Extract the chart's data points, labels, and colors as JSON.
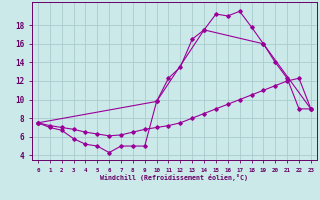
{
  "bg_color": "#cce9e9",
  "line_color": "#990099",
  "grid_color": "#aacccc",
  "xlabel": "Windchill (Refroidissement éolien,°C)",
  "xlabel_color": "#660066",
  "tick_color": "#660066",
  "spine_color": "#660066",
  "ylim": [
    3.5,
    20.5
  ],
  "xlim": [
    -0.5,
    23.5
  ],
  "yticks": [
    4,
    6,
    8,
    10,
    12,
    14,
    16,
    18
  ],
  "xticks": [
    0,
    1,
    2,
    3,
    4,
    5,
    6,
    7,
    8,
    9,
    10,
    11,
    12,
    13,
    14,
    15,
    16,
    17,
    18,
    19,
    20,
    21,
    22,
    23
  ],
  "line1_x": [
    0,
    1,
    2,
    3,
    4,
    5,
    6,
    7,
    8,
    9,
    10,
    11,
    12,
    13,
    14,
    15,
    16,
    17,
    18,
    19,
    20,
    21,
    22,
    23
  ],
  "line1_y": [
    7.5,
    7.0,
    6.7,
    5.8,
    5.2,
    5.0,
    4.3,
    5.0,
    5.0,
    5.0,
    9.8,
    12.3,
    13.5,
    16.5,
    17.5,
    19.2,
    19.0,
    19.5,
    17.8,
    16.0,
    14.0,
    12.3,
    9.0,
    9.0
  ],
  "line2_x": [
    0,
    1,
    2,
    3,
    4,
    5,
    6,
    7,
    8,
    9,
    10,
    11,
    12,
    13,
    14,
    15,
    16,
    17,
    18,
    19,
    20,
    21,
    22,
    23
  ],
  "line2_y": [
    7.5,
    7.2,
    7.0,
    6.8,
    6.5,
    6.3,
    6.1,
    6.2,
    6.5,
    6.8,
    7.0,
    7.2,
    7.5,
    8.0,
    8.5,
    9.0,
    9.5,
    10.0,
    10.5,
    11.0,
    11.5,
    12.0,
    12.3,
    9.0
  ],
  "line3_x": [
    0,
    10,
    14,
    19,
    23
  ],
  "line3_y": [
    7.5,
    9.8,
    17.5,
    16.0,
    9.0
  ]
}
